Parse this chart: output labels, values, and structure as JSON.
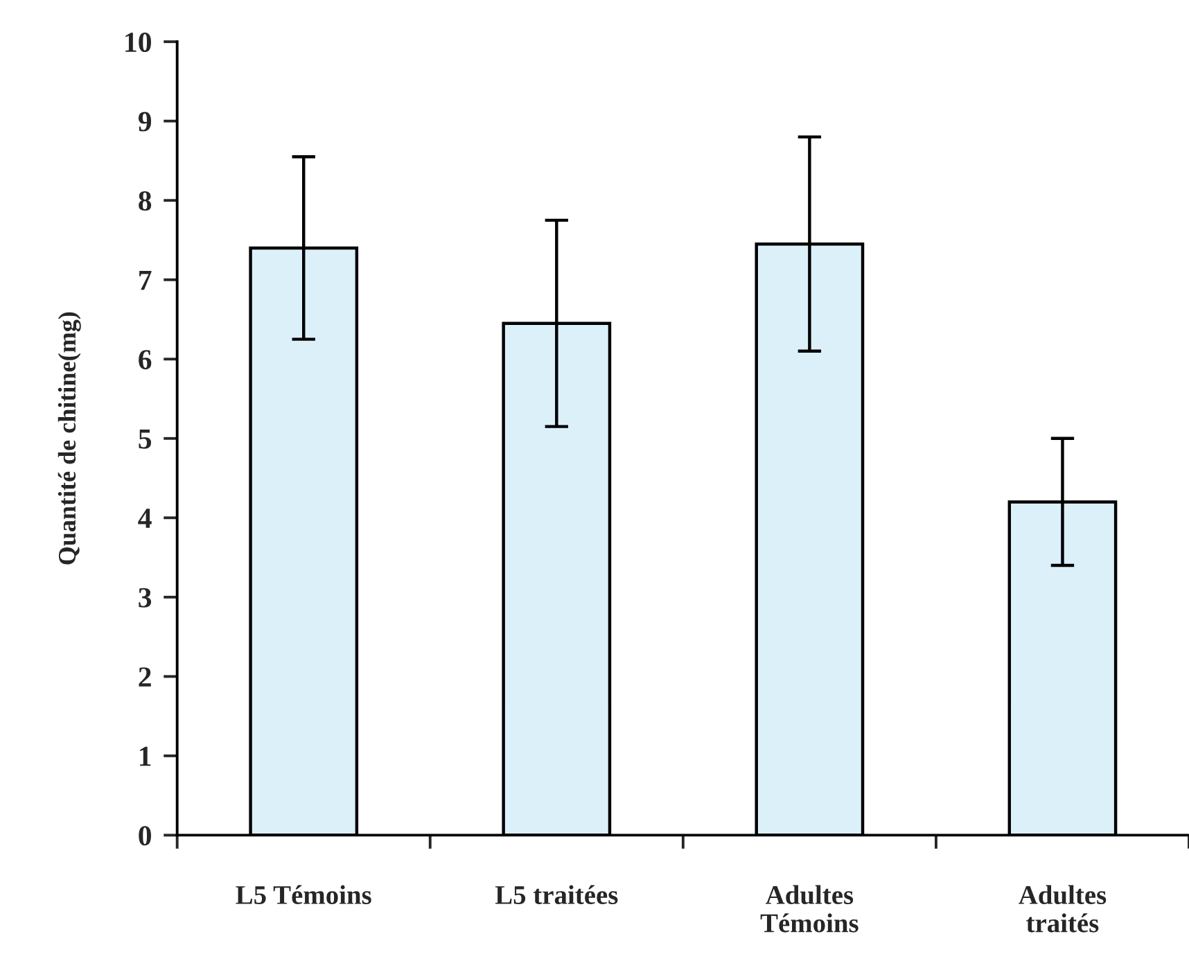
{
  "chart_data": {
    "type": "bar",
    "ylabel": "Quantité de chitine(mg)",
    "categories": [
      "L5 Témoins",
      "L5 traitées",
      "Adultes\nTémoins",
      "Adultes\ntraités"
    ],
    "values": [
      7.4,
      6.45,
      7.45,
      4.2
    ],
    "errors": [
      1.15,
      1.3,
      1.35,
      0.8
    ],
    "color": "#dcf0fa",
    "ylim": [
      0,
      10
    ],
    "yticks": [
      0,
      1,
      2,
      3,
      4,
      5,
      6,
      7,
      8,
      9,
      10
    ]
  }
}
